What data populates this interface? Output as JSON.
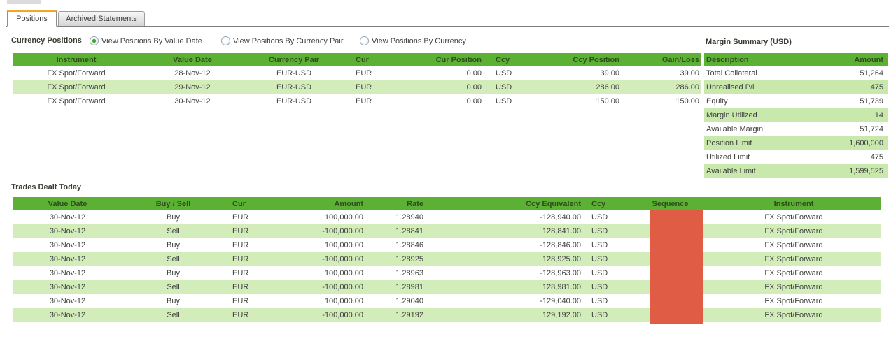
{
  "tabs": [
    {
      "label": "Positions",
      "active": true
    },
    {
      "label": "Archived Statements",
      "active": false
    }
  ],
  "currency_positions": {
    "title": "Currency Positions",
    "radios": [
      {
        "label": "View Positions By Value Date",
        "selected": true
      },
      {
        "label": "View Positions By Currency Pair",
        "selected": false
      },
      {
        "label": "View Positions By Currency",
        "selected": false
      }
    ],
    "columns": [
      "Instrument",
      "Value Date",
      "Currency Pair",
      "Cur",
      "Cur Position",
      "Ccy",
      "Ccy Position",
      "Gain/Loss"
    ],
    "rows": [
      [
        "FX Spot/Forward",
        "28-Nov-12",
        "EUR-USD",
        "EUR",
        "0.00",
        "USD",
        "39.00",
        "39.00"
      ],
      [
        "FX Spot/Forward",
        "29-Nov-12",
        "EUR-USD",
        "EUR",
        "0.00",
        "USD",
        "286.00",
        "286.00"
      ],
      [
        "FX Spot/Forward",
        "30-Nov-12",
        "EUR-USD",
        "EUR",
        "0.00",
        "USD",
        "150.00",
        "150.00"
      ]
    ]
  },
  "margin_summary": {
    "title": "Margin Summary (USD)",
    "columns": [
      "Description",
      "Amount"
    ],
    "rows": [
      [
        "Total Collateral",
        "51,264"
      ],
      [
        "Unrealised P/l",
        "475"
      ],
      [
        "Equity",
        "51,739"
      ],
      [
        "Margin Utilized",
        "14"
      ],
      [
        "Available Margin",
        "51,724"
      ],
      [
        "Position Limit",
        "1,600,000"
      ],
      [
        "Utilized Limit",
        "475"
      ],
      [
        "Available Limit",
        "1,599,525"
      ]
    ]
  },
  "trades": {
    "title": "Trades Dealt Today",
    "columns": [
      "Value Date",
      "Buy / Sell",
      "Cur",
      "Amount",
      "Rate",
      "Ccy Equivalent",
      "Ccy",
      "Sequence",
      "Instrument"
    ],
    "rows": [
      [
        "30-Nov-12",
        "Buy",
        "EUR",
        "100,000.00",
        "1.28940",
        "-128,940.00",
        "USD",
        "",
        "FX Spot/Forward"
      ],
      [
        "30-Nov-12",
        "Sell",
        "EUR",
        "-100,000.00",
        "1.28841",
        "128,841.00",
        "USD",
        "",
        "FX Spot/Forward"
      ],
      [
        "30-Nov-12",
        "Buy",
        "EUR",
        "100,000.00",
        "1.28846",
        "-128,846.00",
        "USD",
        "",
        "FX Spot/Forward"
      ],
      [
        "30-Nov-12",
        "Sell",
        "EUR",
        "-100,000.00",
        "1.28925",
        "128,925.00",
        "USD",
        "",
        "FX Spot/Forward"
      ],
      [
        "30-Nov-12",
        "Buy",
        "EUR",
        "100,000.00",
        "1.28963",
        "-128,963.00",
        "USD",
        "",
        "FX Spot/Forward"
      ],
      [
        "30-Nov-12",
        "Sell",
        "EUR",
        "-100,000.00",
        "1.28981",
        "128,981.00",
        "USD",
        "",
        "FX Spot/Forward"
      ],
      [
        "30-Nov-12",
        "Buy",
        "EUR",
        "100,000.00",
        "1.29040",
        "-129,040.00",
        "USD",
        "",
        "FX Spot/Forward"
      ],
      [
        "30-Nov-12",
        "Sell",
        "EUR",
        "-100,000.00",
        "1.29192",
        "129,192.00",
        "USD",
        "",
        "FX Spot/Forward"
      ]
    ]
  },
  "colors": {
    "header-bg": "#5CB135",
    "header-text": "#2F4D1B",
    "row-green": "#D2ECBA",
    "margin-row-green": "#C8E8AC",
    "accent-orange": "#F5A623",
    "redaction": "#E05C45",
    "text": "#3F3F3F"
  }
}
